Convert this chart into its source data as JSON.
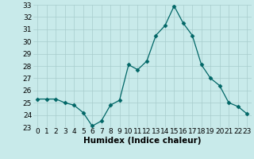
{
  "x": [
    0,
    1,
    2,
    3,
    4,
    5,
    6,
    7,
    8,
    9,
    10,
    11,
    12,
    13,
    14,
    15,
    16,
    17,
    18,
    19,
    20,
    21,
    22,
    23
  ],
  "y": [
    25.3,
    25.3,
    25.3,
    25.0,
    24.8,
    24.2,
    23.1,
    23.5,
    24.8,
    25.2,
    28.1,
    27.7,
    28.4,
    30.5,
    31.3,
    32.9,
    31.5,
    30.5,
    28.1,
    27.0,
    26.4,
    25.0,
    24.7,
    24.1
  ],
  "xlim": [
    -0.5,
    23.5
  ],
  "ylim": [
    23,
    33
  ],
  "yticks": [
    23,
    24,
    25,
    26,
    27,
    28,
    29,
    30,
    31,
    32,
    33
  ],
  "xticks": [
    0,
    1,
    2,
    3,
    4,
    5,
    6,
    7,
    8,
    9,
    10,
    11,
    12,
    13,
    14,
    15,
    16,
    17,
    18,
    19,
    20,
    21,
    22,
    23
  ],
  "xlabel": "Humidex (Indice chaleur)",
  "line_color": "#006666",
  "marker": "D",
  "marker_size": 2.5,
  "bg_color": "#c8eaea",
  "grid_color": "#a8cccc",
  "tick_fontsize": 6.5,
  "xlabel_fontsize": 7.5
}
